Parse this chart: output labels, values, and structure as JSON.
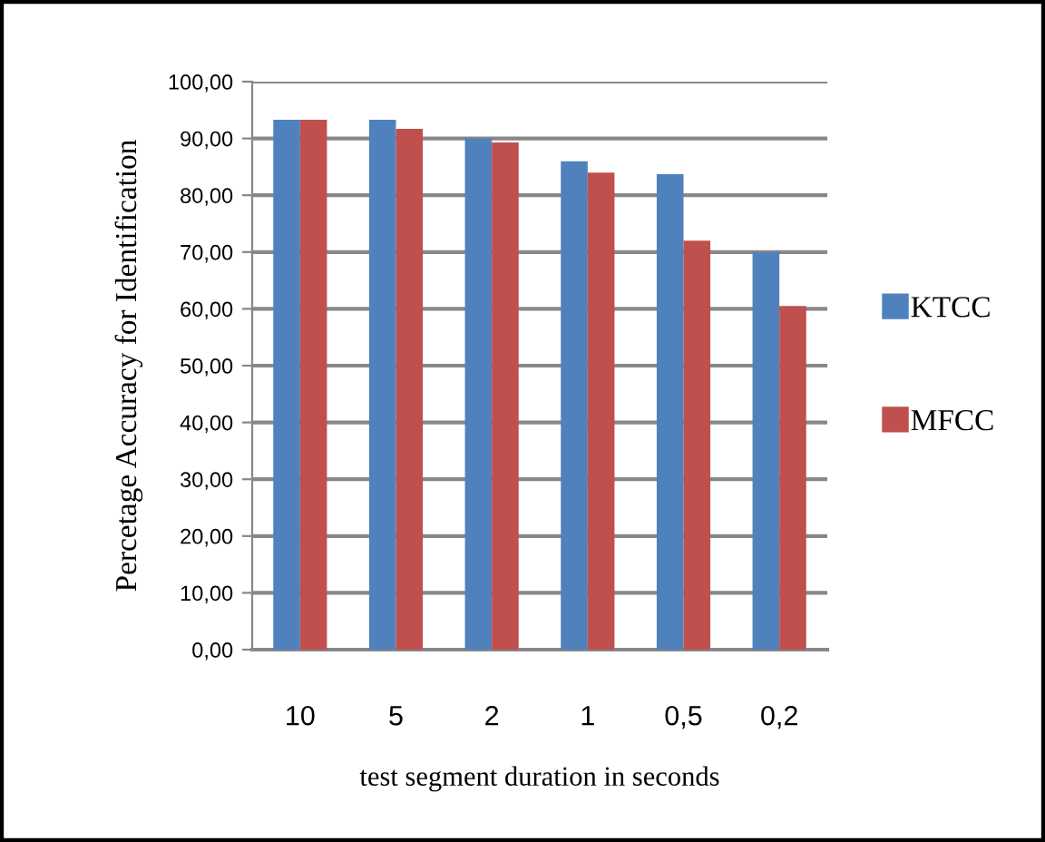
{
  "chart_data": {
    "type": "bar",
    "xlabel": "test segment duration in seconds",
    "ylabel": "Percetage Accuracy for Identification",
    "categories": [
      "10",
      "5",
      "2",
      "1",
      "0,5",
      "0,2"
    ],
    "series": [
      {
        "name": "KTCC",
        "color": "#4f81bd",
        "values": [
          93.3,
          93.3,
          90.0,
          86.0,
          83.7,
          70.0
        ]
      },
      {
        "name": "MFCC",
        "color": "#c0504d",
        "values": [
          93.3,
          91.7,
          89.3,
          84.0,
          72.0,
          60.5
        ]
      }
    ],
    "ylim": [
      0,
      100
    ],
    "yticks": [
      {
        "value": 0,
        "label": "0,00"
      },
      {
        "value": 10,
        "label": "10,00"
      },
      {
        "value": 20,
        "label": "20,00"
      },
      {
        "value": 30,
        "label": "30,00"
      },
      {
        "value": 40,
        "label": "40,00"
      },
      {
        "value": 50,
        "label": "50,00"
      },
      {
        "value": 60,
        "label": "60,00"
      },
      {
        "value": 70,
        "label": "70,00"
      },
      {
        "value": 80,
        "label": "80,00"
      },
      {
        "value": 90,
        "label": "90,00"
      },
      {
        "value": 100,
        "label": "100,00"
      }
    ],
    "grid": "y",
    "legend": "right"
  }
}
